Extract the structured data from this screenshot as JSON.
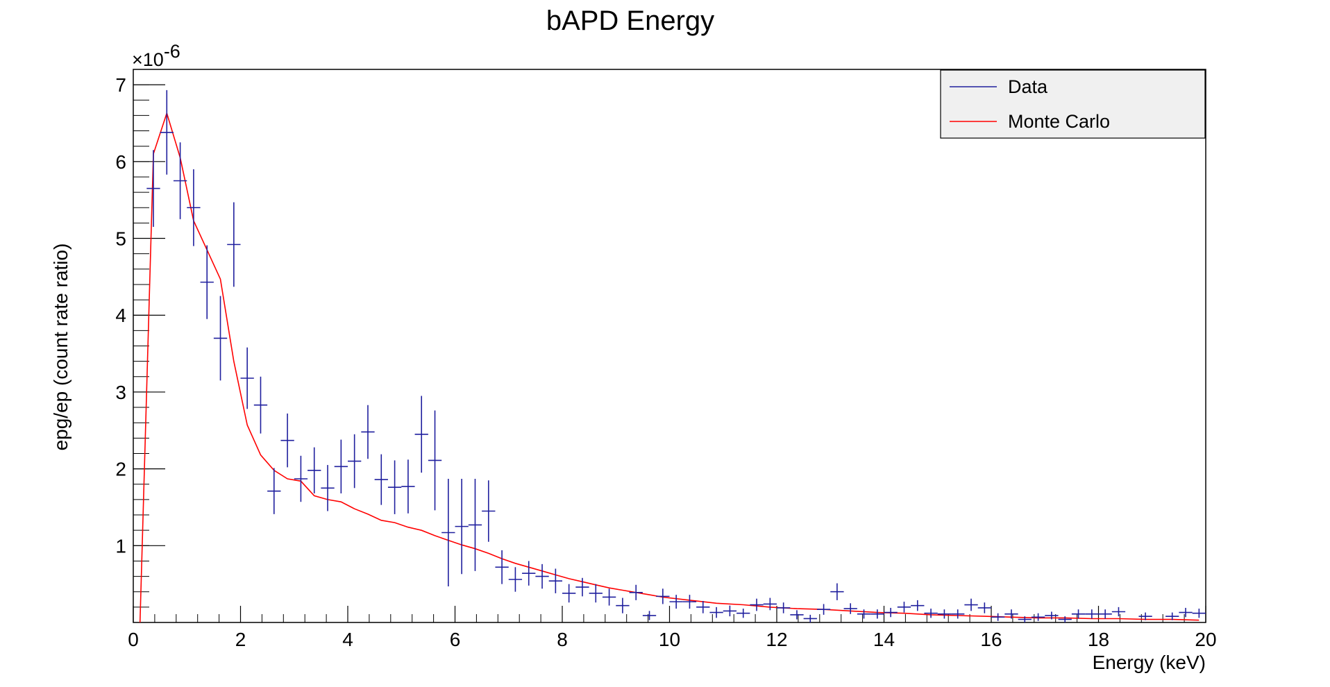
{
  "chart_data": {
    "type": "scatter",
    "title": "bAPD Energy",
    "xlabel": "Energy (keV)",
    "ylabel": "epg/ep (count rate ratio)",
    "y_exponent": "×10",
    "y_exponent_power": "-6",
    "xlim": [
      0,
      20
    ],
    "ylim": [
      0,
      7.2
    ],
    "x_ticks": [
      "0",
      "2",
      "4",
      "6",
      "8",
      "10",
      "12",
      "14",
      "16",
      "18",
      "20"
    ],
    "y_ticks": [
      "1",
      "2",
      "3",
      "4",
      "5",
      "6",
      "7"
    ],
    "legend": {
      "position": "top-right",
      "entries": [
        "Data",
        "Monte Carlo"
      ]
    },
    "colors": {
      "data": "#1f1f9e",
      "monte_carlo": "#ff0000",
      "legend_bg": "#f0f0f0"
    },
    "bin_width": 0.25,
    "series": [
      {
        "name": "Data",
        "kind": "errorbar",
        "points": [
          [
            0.375,
            5.65,
            0.5
          ],
          [
            0.625,
            6.38,
            0.55
          ],
          [
            0.875,
            5.75,
            0.5
          ],
          [
            1.125,
            5.4,
            0.5
          ],
          [
            1.375,
            4.43,
            0.48
          ],
          [
            1.625,
            3.7,
            0.55
          ],
          [
            1.875,
            4.92,
            0.55
          ],
          [
            2.125,
            3.18,
            0.4
          ],
          [
            2.375,
            2.83,
            0.37
          ],
          [
            2.625,
            1.71,
            0.3
          ],
          [
            2.875,
            2.37,
            0.35
          ],
          [
            3.125,
            1.87,
            0.3
          ],
          [
            3.375,
            1.98,
            0.3
          ],
          [
            3.625,
            1.75,
            0.3
          ],
          [
            3.875,
            2.03,
            0.35
          ],
          [
            4.125,
            2.1,
            0.35
          ],
          [
            4.375,
            2.48,
            0.35
          ],
          [
            4.625,
            1.86,
            0.33
          ],
          [
            4.875,
            1.76,
            0.35
          ],
          [
            5.125,
            1.77,
            0.35
          ],
          [
            5.375,
            2.45,
            0.5
          ],
          [
            5.625,
            2.11,
            0.65
          ],
          [
            5.875,
            1.17,
            0.7
          ],
          [
            6.125,
            1.25,
            0.62
          ],
          [
            6.375,
            1.27,
            0.6
          ],
          [
            6.625,
            1.45,
            0.4
          ],
          [
            6.875,
            0.72,
            0.22
          ],
          [
            7.125,
            0.56,
            0.16
          ],
          [
            7.375,
            0.64,
            0.16
          ],
          [
            7.625,
            0.6,
            0.16
          ],
          [
            7.875,
            0.54,
            0.16
          ],
          [
            8.125,
            0.38,
            0.12
          ],
          [
            8.375,
            0.46,
            0.12
          ],
          [
            8.625,
            0.38,
            0.12
          ],
          [
            8.875,
            0.33,
            0.11
          ],
          [
            9.125,
            0.22,
            0.1
          ],
          [
            9.375,
            0.39,
            0.1
          ],
          [
            9.625,
            0.09,
            0.06
          ],
          [
            9.875,
            0.34,
            0.1
          ],
          [
            10.125,
            0.27,
            0.09
          ],
          [
            10.375,
            0.27,
            0.09
          ],
          [
            10.625,
            0.2,
            0.08
          ],
          [
            10.875,
            0.13,
            0.07
          ],
          [
            11.125,
            0.15,
            0.07
          ],
          [
            11.375,
            0.12,
            0.06
          ],
          [
            11.625,
            0.23,
            0.08
          ],
          [
            11.875,
            0.24,
            0.08
          ],
          [
            12.125,
            0.19,
            0.07
          ],
          [
            12.375,
            0.1,
            0.06
          ],
          [
            12.625,
            0.05,
            0.05
          ],
          [
            12.875,
            0.17,
            0.07
          ],
          [
            13.125,
            0.4,
            0.11
          ],
          [
            13.375,
            0.18,
            0.07
          ],
          [
            13.625,
            0.11,
            0.06
          ],
          [
            13.875,
            0.11,
            0.06
          ],
          [
            14.125,
            0.13,
            0.06
          ],
          [
            14.375,
            0.2,
            0.07
          ],
          [
            14.625,
            0.22,
            0.07
          ],
          [
            14.875,
            0.12,
            0.06
          ],
          [
            15.125,
            0.11,
            0.06
          ],
          [
            15.375,
            0.11,
            0.06
          ],
          [
            15.625,
            0.23,
            0.08
          ],
          [
            15.875,
            0.19,
            0.07
          ],
          [
            16.125,
            0.07,
            0.05
          ],
          [
            16.375,
            0.11,
            0.06
          ],
          [
            16.625,
            0.04,
            0.04
          ],
          [
            16.875,
            0.07,
            0.05
          ],
          [
            17.125,
            0.09,
            0.05
          ],
          [
            17.375,
            0.04,
            0.04
          ],
          [
            17.625,
            0.11,
            0.06
          ],
          [
            17.875,
            0.11,
            0.06
          ],
          [
            18.125,
            0.11,
            0.06
          ],
          [
            18.375,
            0.14,
            0.06
          ],
          [
            18.875,
            0.08,
            0.05
          ],
          [
            19.375,
            0.08,
            0.05
          ],
          [
            19.625,
            0.13,
            0.06
          ],
          [
            19.875,
            0.12,
            0.06
          ]
        ]
      },
      {
        "name": "Monte Carlo",
        "kind": "line",
        "points": [
          [
            0.125,
            0.0
          ],
          [
            0.375,
            6.1
          ],
          [
            0.625,
            6.63
          ],
          [
            0.875,
            6.05
          ],
          [
            1.125,
            5.23
          ],
          [
            1.375,
            4.85
          ],
          [
            1.625,
            4.47
          ],
          [
            1.875,
            3.4
          ],
          [
            2.125,
            2.57
          ],
          [
            2.375,
            2.18
          ],
          [
            2.625,
            1.98
          ],
          [
            2.875,
            1.87
          ],
          [
            3.125,
            1.84
          ],
          [
            3.375,
            1.65
          ],
          [
            3.625,
            1.6
          ],
          [
            3.875,
            1.57
          ],
          [
            4.125,
            1.48
          ],
          [
            4.375,
            1.41
          ],
          [
            4.625,
            1.33
          ],
          [
            4.875,
            1.3
          ],
          [
            5.125,
            1.24
          ],
          [
            5.375,
            1.2
          ],
          [
            5.625,
            1.13
          ],
          [
            5.875,
            1.07
          ],
          [
            6.125,
            1.01
          ],
          [
            6.375,
            0.96
          ],
          [
            6.625,
            0.9
          ],
          [
            6.875,
            0.83
          ],
          [
            7.125,
            0.77
          ],
          [
            7.375,
            0.72
          ],
          [
            7.625,
            0.67
          ],
          [
            7.875,
            0.62
          ],
          [
            8.125,
            0.57
          ],
          [
            8.375,
            0.53
          ],
          [
            8.625,
            0.49
          ],
          [
            8.875,
            0.45
          ],
          [
            9.125,
            0.42
          ],
          [
            9.375,
            0.39
          ],
          [
            9.625,
            0.36
          ],
          [
            9.875,
            0.33
          ],
          [
            10.375,
            0.29
          ],
          [
            10.875,
            0.25
          ],
          [
            11.375,
            0.23
          ],
          [
            11.875,
            0.2
          ],
          [
            12.375,
            0.18
          ],
          [
            12.875,
            0.17
          ],
          [
            13.375,
            0.15
          ],
          [
            13.875,
            0.13
          ],
          [
            14.375,
            0.12
          ],
          [
            14.875,
            0.1
          ],
          [
            15.375,
            0.09
          ],
          [
            15.875,
            0.08
          ],
          [
            16.375,
            0.07
          ],
          [
            16.875,
            0.06
          ],
          [
            17.375,
            0.06
          ],
          [
            17.875,
            0.05
          ],
          [
            18.375,
            0.05
          ],
          [
            18.875,
            0.04
          ],
          [
            19.375,
            0.04
          ],
          [
            19.875,
            0.03
          ]
        ]
      }
    ]
  }
}
